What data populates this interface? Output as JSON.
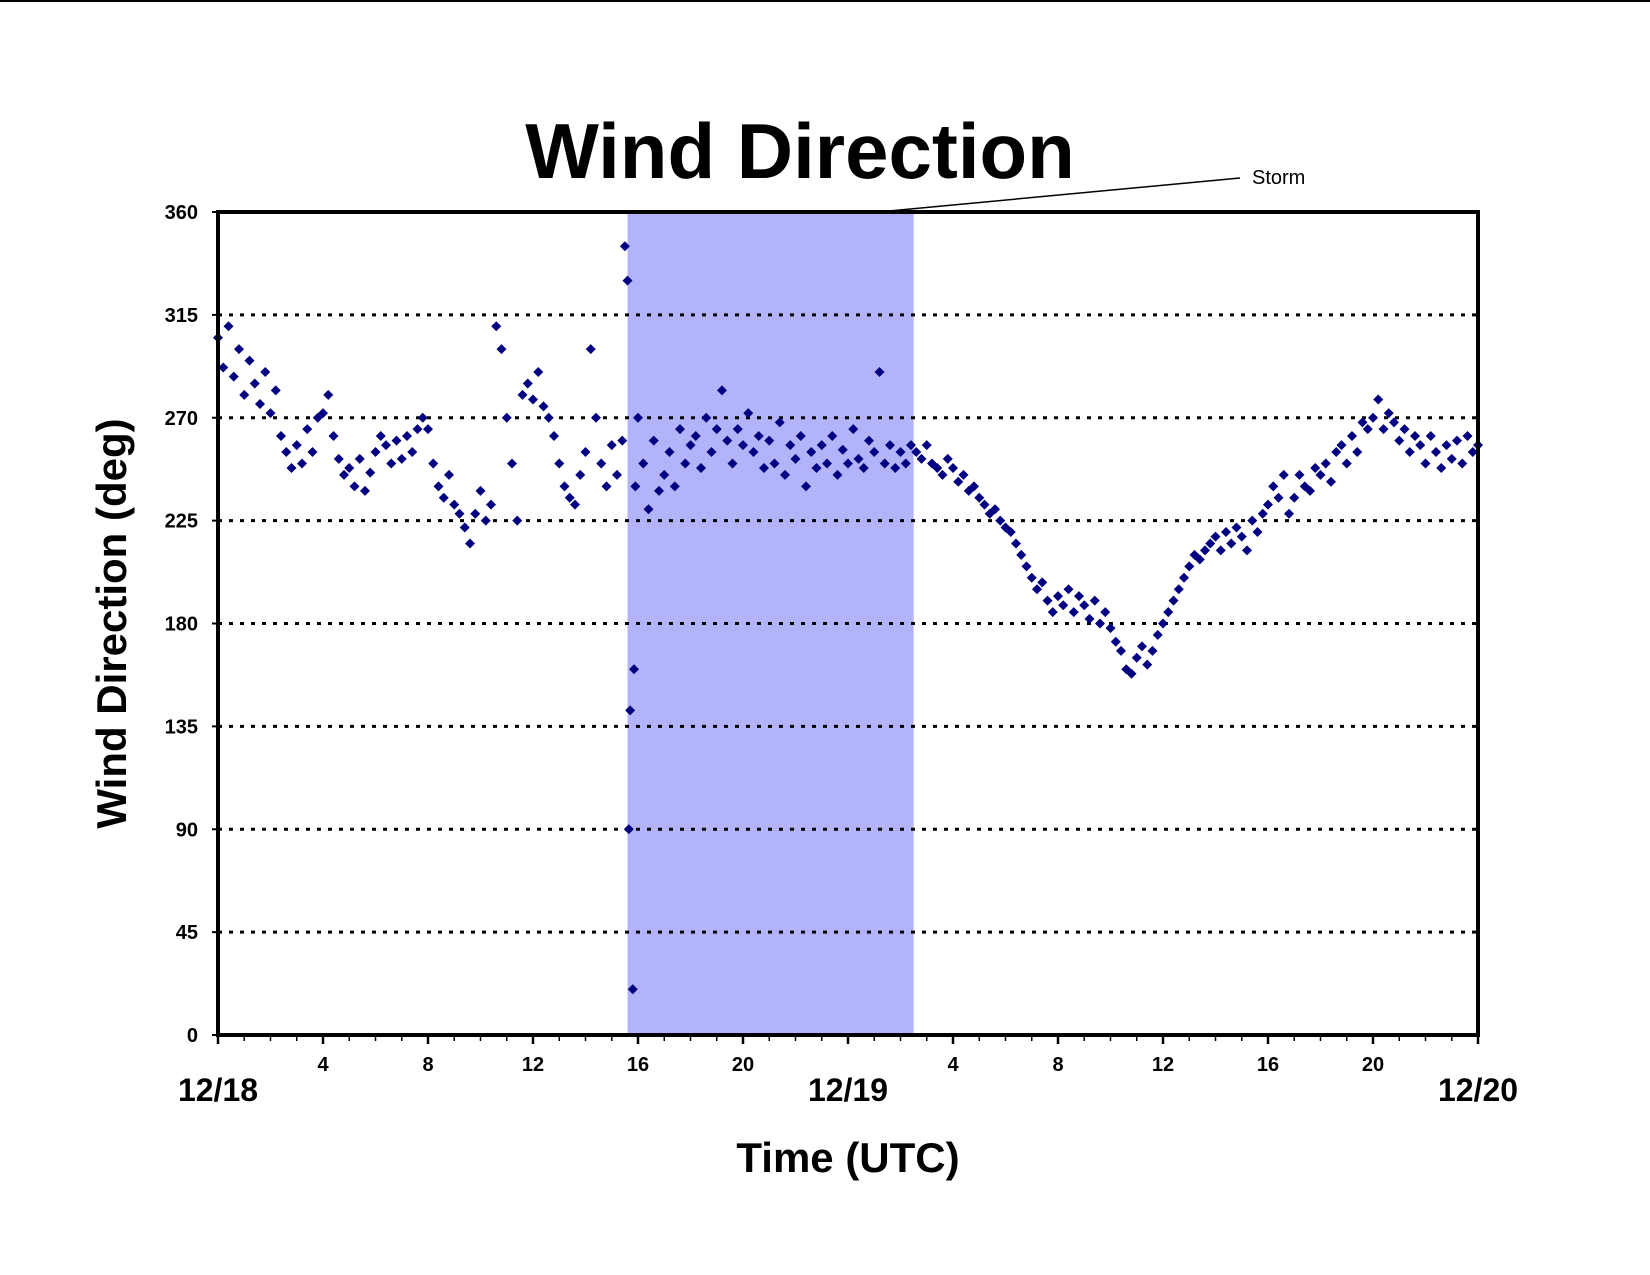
{
  "chart_data": {
    "type": "scatter",
    "title": "Wind Direction",
    "xlabel": "Time (UTC)",
    "ylabel": "Wind Direction (deg)",
    "xlim": [
      0,
      48
    ],
    "ylim": [
      0,
      360
    ],
    "y_ticks": [
      0,
      45,
      90,
      135,
      180,
      225,
      270,
      315,
      360
    ],
    "x_hour_ticks": [
      {
        "t": 4,
        "label": "4"
      },
      {
        "t": 8,
        "label": "8"
      },
      {
        "t": 12,
        "label": "12"
      },
      {
        "t": 16,
        "label": "16"
      },
      {
        "t": 20,
        "label": "20"
      },
      {
        "t": 28,
        "label": "4"
      },
      {
        "t": 32,
        "label": "8"
      },
      {
        "t": 36,
        "label": "12"
      },
      {
        "t": 40,
        "label": "16"
      },
      {
        "t": 44,
        "label": "20"
      }
    ],
    "x_date_ticks": [
      {
        "t": 0,
        "label": "12/18"
      },
      {
        "t": 24,
        "label": "12/19"
      },
      {
        "t": 48,
        "label": "12/20"
      }
    ],
    "grid": "horizontal dotted",
    "marker_color": "#000080",
    "shaded_region": {
      "label": "Storm",
      "x_start": 15.6,
      "x_end": 26.5,
      "color": "#b3b3f9"
    },
    "series": [
      {
        "x_unit": "hours since 12/18 00 UTC",
        "points": [
          [
            0.0,
            305
          ],
          [
            0.2,
            292
          ],
          [
            0.4,
            310
          ],
          [
            0.6,
            288
          ],
          [
            0.8,
            300
          ],
          [
            1.0,
            280
          ],
          [
            1.2,
            295
          ],
          [
            1.4,
            285
          ],
          [
            1.6,
            276
          ],
          [
            1.8,
            290
          ],
          [
            2.0,
            272
          ],
          [
            2.2,
            282
          ],
          [
            2.4,
            262
          ],
          [
            2.6,
            255
          ],
          [
            2.8,
            248
          ],
          [
            3.0,
            258
          ],
          [
            3.2,
            250
          ],
          [
            3.4,
            265
          ],
          [
            3.6,
            255
          ],
          [
            3.8,
            270
          ],
          [
            4.0,
            272
          ],
          [
            4.2,
            280
          ],
          [
            4.4,
            262
          ],
          [
            4.6,
            252
          ],
          [
            4.8,
            245
          ],
          [
            5.0,
            248
          ],
          [
            5.2,
            240
          ],
          [
            5.4,
            252
          ],
          [
            5.6,
            238
          ],
          [
            5.8,
            246
          ],
          [
            6.0,
            255
          ],
          [
            6.2,
            262
          ],
          [
            6.4,
            258
          ],
          [
            6.6,
            250
          ],
          [
            6.8,
            260
          ],
          [
            7.0,
            252
          ],
          [
            7.2,
            262
          ],
          [
            7.4,
            255
          ],
          [
            7.6,
            265
          ],
          [
            7.8,
            270
          ],
          [
            8.0,
            265
          ],
          [
            8.2,
            250
          ],
          [
            8.4,
            240
          ],
          [
            8.6,
            235
          ],
          [
            8.8,
            245
          ],
          [
            9.0,
            232
          ],
          [
            9.2,
            228
          ],
          [
            9.4,
            222
          ],
          [
            9.6,
            215
          ],
          [
            9.8,
            228
          ],
          [
            10.0,
            238
          ],
          [
            10.2,
            225
          ],
          [
            10.4,
            232
          ],
          [
            10.6,
            310
          ],
          [
            10.8,
            300
          ],
          [
            11.0,
            270
          ],
          [
            11.2,
            250
          ],
          [
            11.4,
            225
          ],
          [
            11.6,
            280
          ],
          [
            11.8,
            285
          ],
          [
            12.0,
            278
          ],
          [
            12.2,
            290
          ],
          [
            12.4,
            275
          ],
          [
            12.6,
            270
          ],
          [
            12.8,
            262
          ],
          [
            13.0,
            250
          ],
          [
            13.2,
            240
          ],
          [
            13.4,
            235
          ],
          [
            13.6,
            232
          ],
          [
            13.8,
            245
          ],
          [
            14.0,
            255
          ],
          [
            14.2,
            300
          ],
          [
            14.4,
            270
          ],
          [
            14.6,
            250
          ],
          [
            14.8,
            240
          ],
          [
            15.0,
            258
          ],
          [
            15.2,
            245
          ],
          [
            15.4,
            260
          ],
          [
            15.5,
            345
          ],
          [
            15.6,
            330
          ],
          [
            15.65,
            90
          ],
          [
            15.7,
            142
          ],
          [
            15.8,
            20
          ],
          [
            15.85,
            160
          ],
          [
            15.9,
            240
          ],
          [
            16.0,
            270
          ],
          [
            16.2,
            250
          ],
          [
            16.4,
            230
          ],
          [
            16.6,
            260
          ],
          [
            16.8,
            238
          ],
          [
            17.0,
            245
          ],
          [
            17.2,
            255
          ],
          [
            17.4,
            240
          ],
          [
            17.6,
            265
          ],
          [
            17.8,
            250
          ],
          [
            18.0,
            258
          ],
          [
            18.2,
            262
          ],
          [
            18.4,
            248
          ],
          [
            18.6,
            270
          ],
          [
            18.8,
            255
          ],
          [
            19.0,
            265
          ],
          [
            19.2,
            282
          ],
          [
            19.4,
            260
          ],
          [
            19.6,
            250
          ],
          [
            19.8,
            265
          ],
          [
            20.0,
            258
          ],
          [
            20.2,
            272
          ],
          [
            20.4,
            255
          ],
          [
            20.6,
            262
          ],
          [
            20.8,
            248
          ],
          [
            21.0,
            260
          ],
          [
            21.2,
            250
          ],
          [
            21.4,
            268
          ],
          [
            21.6,
            245
          ],
          [
            21.8,
            258
          ],
          [
            22.0,
            252
          ],
          [
            22.2,
            262
          ],
          [
            22.4,
            240
          ],
          [
            22.6,
            255
          ],
          [
            22.8,
            248
          ],
          [
            23.0,
            258
          ],
          [
            23.2,
            250
          ],
          [
            23.4,
            262
          ],
          [
            23.6,
            245
          ],
          [
            23.8,
            256
          ],
          [
            24.0,
            250
          ],
          [
            24.2,
            265
          ],
          [
            24.4,
            252
          ],
          [
            24.6,
            248
          ],
          [
            24.8,
            260
          ],
          [
            25.0,
            255
          ],
          [
            25.2,
            290
          ],
          [
            25.4,
            250
          ],
          [
            25.6,
            258
          ],
          [
            25.8,
            248
          ],
          [
            26.0,
            255
          ],
          [
            26.2,
            250
          ],
          [
            26.4,
            258
          ],
          [
            26.6,
            255
          ],
          [
            26.8,
            252
          ],
          [
            27.0,
            258
          ],
          [
            27.2,
            250
          ],
          [
            27.4,
            248
          ],
          [
            27.6,
            245
          ],
          [
            27.8,
            252
          ],
          [
            28.0,
            248
          ],
          [
            28.2,
            242
          ],
          [
            28.4,
            245
          ],
          [
            28.6,
            238
          ],
          [
            28.8,
            240
          ],
          [
            29.0,
            235
          ],
          [
            29.2,
            232
          ],
          [
            29.4,
            228
          ],
          [
            29.6,
            230
          ],
          [
            29.8,
            225
          ],
          [
            30.0,
            222
          ],
          [
            30.2,
            220
          ],
          [
            30.4,
            215
          ],
          [
            30.6,
            210
          ],
          [
            30.8,
            205
          ],
          [
            31.0,
            200
          ],
          [
            31.2,
            195
          ],
          [
            31.4,
            198
          ],
          [
            31.6,
            190
          ],
          [
            31.8,
            185
          ],
          [
            32.0,
            192
          ],
          [
            32.2,
            188
          ],
          [
            32.4,
            195
          ],
          [
            32.6,
            185
          ],
          [
            32.8,
            192
          ],
          [
            33.0,
            188
          ],
          [
            33.2,
            182
          ],
          [
            33.4,
            190
          ],
          [
            33.6,
            180
          ],
          [
            33.8,
            185
          ],
          [
            34.0,
            178
          ],
          [
            34.2,
            172
          ],
          [
            34.4,
            168
          ],
          [
            34.6,
            160
          ],
          [
            34.8,
            158
          ],
          [
            35.0,
            165
          ],
          [
            35.2,
            170
          ],
          [
            35.4,
            162
          ],
          [
            35.6,
            168
          ],
          [
            35.8,
            175
          ],
          [
            36.0,
            180
          ],
          [
            36.2,
            185
          ],
          [
            36.4,
            190
          ],
          [
            36.6,
            195
          ],
          [
            36.8,
            200
          ],
          [
            37.0,
            205
          ],
          [
            37.2,
            210
          ],
          [
            37.4,
            208
          ],
          [
            37.6,
            212
          ],
          [
            37.8,
            215
          ],
          [
            38.0,
            218
          ],
          [
            38.2,
            212
          ],
          [
            38.4,
            220
          ],
          [
            38.6,
            215
          ],
          [
            38.8,
            222
          ],
          [
            39.0,
            218
          ],
          [
            39.2,
            212
          ],
          [
            39.4,
            225
          ],
          [
            39.6,
            220
          ],
          [
            39.8,
            228
          ],
          [
            40.0,
            232
          ],
          [
            40.2,
            240
          ],
          [
            40.4,
            235
          ],
          [
            40.6,
            245
          ],
          [
            40.8,
            228
          ],
          [
            41.0,
            235
          ],
          [
            41.2,
            245
          ],
          [
            41.4,
            240
          ],
          [
            41.6,
            238
          ],
          [
            41.8,
            248
          ],
          [
            42.0,
            245
          ],
          [
            42.2,
            250
          ],
          [
            42.4,
            242
          ],
          [
            42.6,
            255
          ],
          [
            42.8,
            258
          ],
          [
            43.0,
            250
          ],
          [
            43.2,
            262
          ],
          [
            43.4,
            255
          ],
          [
            43.6,
            268
          ],
          [
            43.8,
            265
          ],
          [
            44.0,
            270
          ],
          [
            44.2,
            278
          ],
          [
            44.4,
            265
          ],
          [
            44.6,
            272
          ],
          [
            44.8,
            268
          ],
          [
            45.0,
            260
          ],
          [
            45.2,
            265
          ],
          [
            45.4,
            255
          ],
          [
            45.6,
            262
          ],
          [
            45.8,
            258
          ],
          [
            46.0,
            250
          ],
          [
            46.2,
            262
          ],
          [
            46.4,
            255
          ],
          [
            46.6,
            248
          ],
          [
            46.8,
            258
          ],
          [
            47.0,
            252
          ],
          [
            47.2,
            260
          ],
          [
            47.4,
            250
          ],
          [
            47.6,
            262
          ],
          [
            47.8,
            255
          ],
          [
            48.0,
            258
          ]
        ]
      }
    ]
  }
}
